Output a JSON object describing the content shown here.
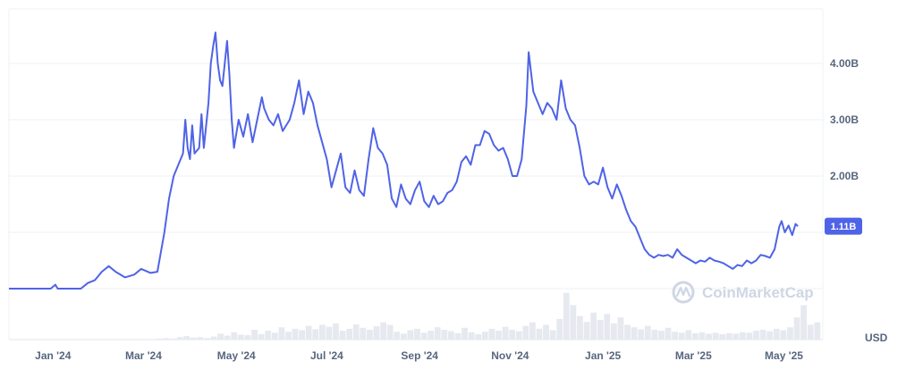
{
  "chart_data": {
    "type": "line",
    "y_unit": "USD",
    "ylim": [
      0,
      4.8
    ],
    "y_ticks": [
      {
        "value": 2,
        "label": "2.00B"
      },
      {
        "value": 3,
        "label": "3.00B"
      },
      {
        "value": 4,
        "label": "4.00B"
      }
    ],
    "x_ticks": [
      {
        "value": 0.95,
        "label": "Jan '24"
      },
      {
        "value": 2.9,
        "label": "Mar '24"
      },
      {
        "value": 4.9,
        "label": "May '24"
      },
      {
        "value": 6.85,
        "label": "Jul '24"
      },
      {
        "value": 8.85,
        "label": "Sep '24"
      },
      {
        "value": 10.8,
        "label": "Nov '24"
      },
      {
        "value": 12.8,
        "label": "Jan '25"
      },
      {
        "value": 14.75,
        "label": "Mar '25"
      },
      {
        "value": 16.7,
        "label": "May '25"
      }
    ],
    "xlim": [
      0,
      17.5
    ],
    "grid": true,
    "current_value": {
      "value": 1.11,
      "label": "1.11B"
    },
    "series": [
      {
        "color": "#4f63e7",
        "points": [
          [
            0,
            0
          ],
          [
            0.45,
            0
          ],
          [
            0.9,
            0
          ],
          [
            1.0,
            0.07
          ],
          [
            1.05,
            0
          ],
          [
            1.35,
            0
          ],
          [
            1.55,
            0
          ],
          [
            1.7,
            0.1
          ],
          [
            1.85,
            0.15
          ],
          [
            2.0,
            0.3
          ],
          [
            2.15,
            0.4
          ],
          [
            2.3,
            0.3
          ],
          [
            2.5,
            0.2
          ],
          [
            2.7,
            0.25
          ],
          [
            2.85,
            0.35
          ],
          [
            3.05,
            0.28
          ],
          [
            3.2,
            0.3
          ],
          [
            3.35,
            1.0
          ],
          [
            3.45,
            1.6
          ],
          [
            3.55,
            2.0
          ],
          [
            3.65,
            2.2
          ],
          [
            3.75,
            2.4
          ],
          [
            3.8,
            3.0
          ],
          [
            3.85,
            2.5
          ],
          [
            3.9,
            2.3
          ],
          [
            3.95,
            2.9
          ],
          [
            4.0,
            2.4
          ],
          [
            4.1,
            2.5
          ],
          [
            4.15,
            3.1
          ],
          [
            4.2,
            2.5
          ],
          [
            4.3,
            3.3
          ],
          [
            4.35,
            4.0
          ],
          [
            4.4,
            4.3
          ],
          [
            4.45,
            4.55
          ],
          [
            4.5,
            4.0
          ],
          [
            4.55,
            3.7
          ],
          [
            4.6,
            3.6
          ],
          [
            4.7,
            4.4
          ],
          [
            4.75,
            3.8
          ],
          [
            4.8,
            3.0
          ],
          [
            4.85,
            2.5
          ],
          [
            4.95,
            3.0
          ],
          [
            5.05,
            2.7
          ],
          [
            5.15,
            3.1
          ],
          [
            5.25,
            2.6
          ],
          [
            5.35,
            3.0
          ],
          [
            5.45,
            3.4
          ],
          [
            5.5,
            3.2
          ],
          [
            5.6,
            3.0
          ],
          [
            5.7,
            2.9
          ],
          [
            5.8,
            3.1
          ],
          [
            5.9,
            2.8
          ],
          [
            6.05,
            3.0
          ],
          [
            6.15,
            3.3
          ],
          [
            6.25,
            3.7
          ],
          [
            6.35,
            3.1
          ],
          [
            6.45,
            3.5
          ],
          [
            6.55,
            3.3
          ],
          [
            6.65,
            2.9
          ],
          [
            6.75,
            2.6
          ],
          [
            6.85,
            2.3
          ],
          [
            6.95,
            1.8
          ],
          [
            7.05,
            2.1
          ],
          [
            7.15,
            2.4
          ],
          [
            7.25,
            1.8
          ],
          [
            7.35,
            1.7
          ],
          [
            7.45,
            2.1
          ],
          [
            7.55,
            1.75
          ],
          [
            7.65,
            1.65
          ],
          [
            7.75,
            2.3
          ],
          [
            7.85,
            2.85
          ],
          [
            7.95,
            2.5
          ],
          [
            8.05,
            2.4
          ],
          [
            8.15,
            2.2
          ],
          [
            8.25,
            1.6
          ],
          [
            8.35,
            1.45
          ],
          [
            8.45,
            1.85
          ],
          [
            8.55,
            1.6
          ],
          [
            8.65,
            1.5
          ],
          [
            8.75,
            1.75
          ],
          [
            8.85,
            1.9
          ],
          [
            8.95,
            1.55
          ],
          [
            9.05,
            1.45
          ],
          [
            9.15,
            1.65
          ],
          [
            9.25,
            1.5
          ],
          [
            9.35,
            1.55
          ],
          [
            9.45,
            1.7
          ],
          [
            9.55,
            1.75
          ],
          [
            9.65,
            1.9
          ],
          [
            9.75,
            2.25
          ],
          [
            9.85,
            2.35
          ],
          [
            9.95,
            2.2
          ],
          [
            10.05,
            2.55
          ],
          [
            10.15,
            2.55
          ],
          [
            10.25,
            2.8
          ],
          [
            10.35,
            2.75
          ],
          [
            10.45,
            2.55
          ],
          [
            10.55,
            2.45
          ],
          [
            10.65,
            2.5
          ],
          [
            10.75,
            2.3
          ],
          [
            10.85,
            2.0
          ],
          [
            10.95,
            2.0
          ],
          [
            11.05,
            2.3
          ],
          [
            11.15,
            3.25
          ],
          [
            11.2,
            4.2
          ],
          [
            11.3,
            3.5
          ],
          [
            11.4,
            3.3
          ],
          [
            11.5,
            3.1
          ],
          [
            11.6,
            3.3
          ],
          [
            11.7,
            3.2
          ],
          [
            11.8,
            3.0
          ],
          [
            11.9,
            3.7
          ],
          [
            12.0,
            3.2
          ],
          [
            12.1,
            3.0
          ],
          [
            12.2,
            2.9
          ],
          [
            12.3,
            2.5
          ],
          [
            12.4,
            2.0
          ],
          [
            12.5,
            1.85
          ],
          [
            12.6,
            1.9
          ],
          [
            12.7,
            1.85
          ],
          [
            12.8,
            2.15
          ],
          [
            12.9,
            1.8
          ],
          [
            13.0,
            1.6
          ],
          [
            13.1,
            1.85
          ],
          [
            13.2,
            1.65
          ],
          [
            13.3,
            1.4
          ],
          [
            13.4,
            1.2
          ],
          [
            13.5,
            1.1
          ],
          [
            13.6,
            0.9
          ],
          [
            13.7,
            0.7
          ],
          [
            13.8,
            0.6
          ],
          [
            13.9,
            0.55
          ],
          [
            14.0,
            0.6
          ],
          [
            14.1,
            0.58
          ],
          [
            14.2,
            0.6
          ],
          [
            14.3,
            0.55
          ],
          [
            14.4,
            0.7
          ],
          [
            14.5,
            0.6
          ],
          [
            14.6,
            0.55
          ],
          [
            14.7,
            0.5
          ],
          [
            14.8,
            0.45
          ],
          [
            14.9,
            0.5
          ],
          [
            15.0,
            0.48
          ],
          [
            15.1,
            0.55
          ],
          [
            15.2,
            0.5
          ],
          [
            15.3,
            0.48
          ],
          [
            15.4,
            0.45
          ],
          [
            15.5,
            0.4
          ],
          [
            15.6,
            0.35
          ],
          [
            15.7,
            0.42
          ],
          [
            15.8,
            0.4
          ],
          [
            15.9,
            0.5
          ],
          [
            16.0,
            0.45
          ],
          [
            16.1,
            0.5
          ],
          [
            16.2,
            0.6
          ],
          [
            16.3,
            0.58
          ],
          [
            16.4,
            0.55
          ],
          [
            16.5,
            0.7
          ],
          [
            16.6,
            1.1
          ],
          [
            16.65,
            1.2
          ],
          [
            16.72,
            1.0
          ],
          [
            16.8,
            1.12
          ],
          [
            16.88,
            0.95
          ],
          [
            16.95,
            1.15
          ],
          [
            17.0,
            1.11
          ]
        ]
      }
    ],
    "volume": [
      0.02,
      0.03,
      0.02,
      0.05,
      0.07,
      0.04,
      0.05,
      0.03,
      0.06,
      0.12,
      0.08,
      0.15,
      0.1,
      0.09,
      0.2,
      0.11,
      0.18,
      0.14,
      0.25,
      0.16,
      0.22,
      0.19,
      0.28,
      0.21,
      0.3,
      0.26,
      0.33,
      0.18,
      0.22,
      0.31,
      0.24,
      0.2,
      0.27,
      0.35,
      0.3,
      0.16,
      0.12,
      0.19,
      0.22,
      0.14,
      0.18,
      0.25,
      0.2,
      0.17,
      0.13,
      0.24,
      0.15,
      0.11,
      0.16,
      0.22,
      0.18,
      0.26,
      0.2,
      0.17,
      0.28,
      0.35,
      0.22,
      0.3,
      0.19,
      0.42,
      0.95,
      0.7,
      0.48,
      0.36,
      0.55,
      0.4,
      0.52,
      0.33,
      0.45,
      0.3,
      0.25,
      0.21,
      0.28,
      0.2,
      0.18,
      0.24,
      0.16,
      0.14,
      0.19,
      0.13,
      0.15,
      0.12,
      0.14,
      0.11,
      0.13,
      0.12,
      0.15,
      0.14,
      0.18,
      0.2,
      0.17,
      0.22,
      0.19,
      0.25,
      0.45,
      0.7,
      0.3,
      0.35
    ]
  },
  "watermark": {
    "text": "CoinMarketCap",
    "logo_icon": "coinmarketcap-logo-icon"
  }
}
